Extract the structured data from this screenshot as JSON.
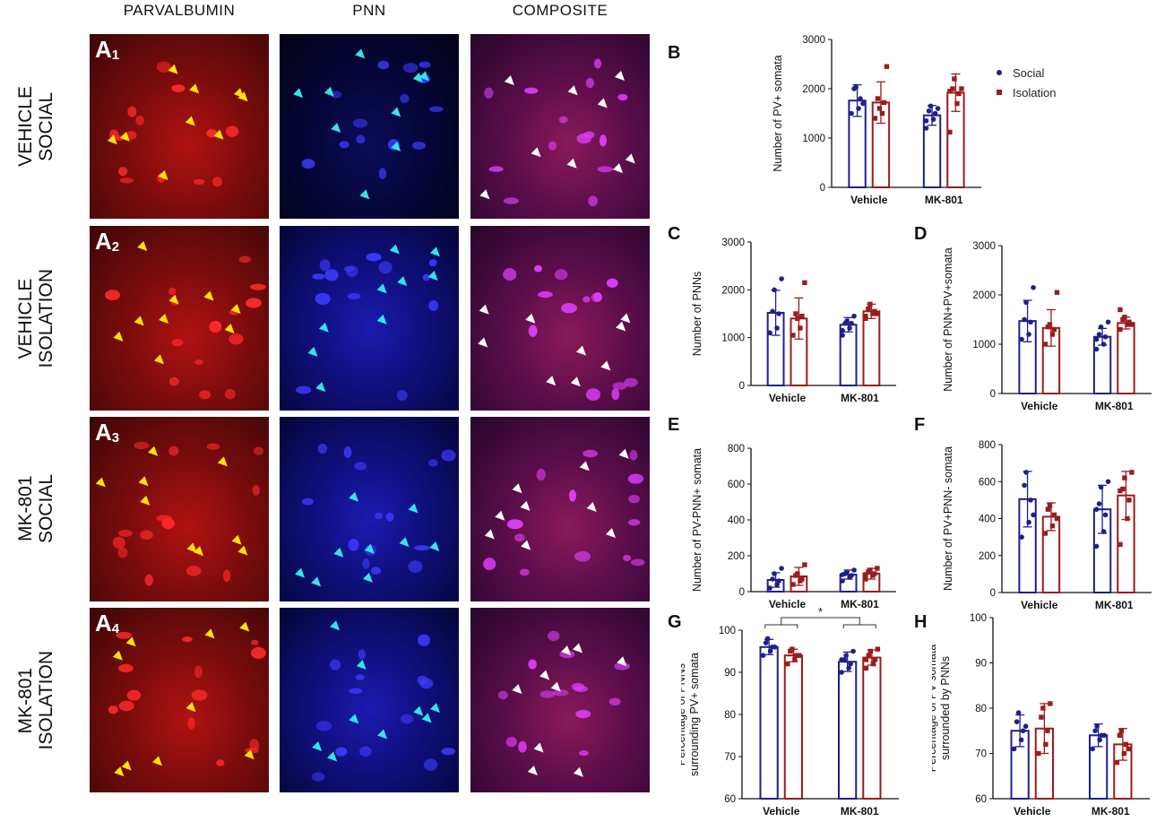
{
  "column_headers": [
    "PARVALBUMIN",
    "PNN",
    "COMPOSITE"
  ],
  "rows": [
    {
      "label": [
        "VEHICLE",
        "SOCIAL"
      ],
      "tag": "A",
      "tag_sub": "1"
    },
    {
      "label": [
        "VEHICLE",
        "ISOLATION"
      ],
      "tag": "A",
      "tag_sub": "2"
    },
    {
      "label": [
        "MK-801",
        "SOCIAL"
      ],
      "tag": "A",
      "tag_sub": "3"
    },
    {
      "label": [
        "MK-801",
        "ISOLATION"
      ],
      "tag": "A",
      "tag_sub": "4"
    }
  ],
  "legend": [
    {
      "name": "Social",
      "color": "#1f1f8c",
      "marker": "circle"
    },
    {
      "name": "Isolation",
      "color": "#9b1c1c",
      "marker": "square"
    }
  ],
  "colors": {
    "social": "#1f1f8c",
    "isolation": "#9b1c1c",
    "parvalbumin_bg": "#5a0a0a",
    "pnn_bg": "#05052e",
    "composite_bg": "#2a0a2e",
    "pv_arrow": "#ffe600",
    "pnn_arrow": "#2ee6e6",
    "composite_arrow": "#ffffff"
  },
  "chart_data": [
    {
      "id": "B",
      "type": "bar",
      "categories": [
        "Vehicle",
        "MK-801"
      ],
      "ylabel": "Number of PV+ somata",
      "ylim": [
        0,
        3000
      ],
      "yticks": [
        0,
        1000,
        2000,
        3000
      ],
      "series": [
        {
          "name": "Social",
          "values": [
            1760,
            1460
          ],
          "err": [
            320,
            200
          ],
          "points": [
            [
              1500,
              1600,
              1800,
              2000,
              2030,
              1700
            ],
            [
              1200,
              1380,
              1500,
              1550,
              1650,
              1600,
              1350
            ]
          ]
        },
        {
          "name": "Isolation",
          "values": [
            1720,
            1920
          ],
          "err": [
            420,
            380
          ],
          "points": [
            [
              1400,
              1500,
              1720,
              1800,
              1600,
              2450
            ],
            [
              1120,
              1700,
              1900,
              2000,
              2200,
              2000,
              1950
            ]
          ]
        }
      ],
      "sig": null
    },
    {
      "id": "C",
      "type": "bar",
      "categories": [
        "Vehicle",
        "MK-801"
      ],
      "ylabel": "Number of PNNs",
      "ylim": [
        0,
        3000
      ],
      "yticks": [
        0,
        1000,
        2000,
        3000
      ],
      "series": [
        {
          "name": "Social",
          "values": [
            1520,
            1270
          ],
          "err": [
            470,
            150
          ],
          "points": [
            [
              1100,
              1200,
              1500,
              1550,
              2000,
              2230
            ],
            [
              1050,
              1200,
              1300,
              1300,
              1350,
              1450,
              1150
            ]
          ]
        },
        {
          "name": "Isolation",
          "values": [
            1400,
            1550
          ],
          "err": [
            430,
            150
          ],
          "points": [
            [
              1050,
              1200,
              1450,
              1500,
              1400,
              2150
            ],
            [
              1400,
              1500,
              1550,
              1600,
              1700,
              1500,
              1450
            ]
          ]
        }
      ],
      "sig": null
    },
    {
      "id": "D",
      "type": "bar",
      "categories": [
        "Vehicle",
        "MK-801"
      ],
      "ylabel": "Number of PNN+PV+somata",
      "ylim": [
        0,
        3000
      ],
      "yticks": [
        0,
        1000,
        2000,
        3000
      ],
      "series": [
        {
          "name": "Social",
          "values": [
            1470,
            1150
          ],
          "err": [
            420,
            170
          ],
          "points": [
            [
              1100,
              1200,
              1450,
              1500,
              1850,
              2150
            ],
            [
              900,
              1000,
              1150,
              1200,
              1350,
              1450,
              1100
            ]
          ]
        },
        {
          "name": "Isolation",
          "values": [
            1330,
            1430
          ],
          "err": [
            370,
            120
          ],
          "points": [
            [
              1000,
              1200,
              1300,
              1350,
              1400,
              2050
            ],
            [
              1300,
              1400,
              1450,
              1500,
              1550,
              1400,
              1700
            ]
          ]
        }
      ],
      "sig": null
    },
    {
      "id": "E",
      "type": "bar",
      "categories": [
        "Vehicle",
        "MK-801"
      ],
      "ylabel": "Number of PV-PNN+ somata",
      "ylim": [
        0,
        800
      ],
      "yticks": [
        0,
        200,
        400,
        600,
        800
      ],
      "series": [
        {
          "name": "Social",
          "values": [
            65,
            95
          ],
          "err": [
            40,
            25
          ],
          "points": [
            [
              20,
              40,
              60,
              70,
              100,
              130
            ],
            [
              60,
              80,
              90,
              100,
              110,
              120,
              95
            ]
          ]
        },
        {
          "name": "Isolation",
          "values": [
            85,
            100
          ],
          "err": [
            50,
            30
          ],
          "points": [
            [
              40,
              60,
              70,
              90,
              100,
              150
            ],
            [
              70,
              90,
              100,
              110,
              120,
              130,
              95
            ]
          ]
        }
      ],
      "sig": null
    },
    {
      "id": "F",
      "type": "bar",
      "categories": [
        "Vehicle",
        "MK-801"
      ],
      "ylabel": "Number of PV+PNN- somata",
      "ylim": [
        0,
        800
      ],
      "yticks": [
        0,
        200,
        400,
        600,
        800
      ],
      "series": [
        {
          "name": "Social",
          "values": [
            505,
            450
          ],
          "err": [
            150,
            130
          ],
          "points": [
            [
              300,
              380,
              500,
              580,
              650,
              420
            ],
            [
              250,
              330,
              420,
              480,
              570,
              600,
              450
            ]
          ]
        },
        {
          "name": "Isolation",
          "values": [
            410,
            525
          ],
          "err": [
            75,
            130
          ],
          "points": [
            [
              320,
              360,
              420,
              450,
              470,
              400
            ],
            [
              260,
              400,
              500,
              560,
              620,
              650,
              550
            ]
          ]
        }
      ],
      "sig": null
    },
    {
      "id": "G",
      "type": "bar",
      "categories": [
        "Vehicle",
        "MK-801"
      ],
      "ylabel": [
        "Percentage of PNNs",
        "surrounding PV+ somata"
      ],
      "ylim": [
        60,
        100
      ],
      "yticks": [
        60,
        70,
        80,
        90,
        100
      ],
      "series": [
        {
          "name": "Social",
          "values": [
            96.0,
            92.5
          ],
          "err": [
            1.8,
            2.3
          ],
          "points": [
            [
              94,
              95,
              96,
              97,
              98,
              96
            ],
            [
              90,
              91,
              92,
              93,
              94,
              95,
              93
            ]
          ]
        },
        {
          "name": "Isolation",
          "values": [
            94.0,
            93.5
          ],
          "err": [
            1.5,
            1.8
          ],
          "points": [
            [
              92,
              93,
              94,
              95,
              95.5,
              94
            ],
            [
              91,
              92,
              93,
              94,
              95,
              95.5,
              93
            ]
          ]
        }
      ],
      "sig": "*"
    },
    {
      "id": "H",
      "type": "bar",
      "categories": [
        "Vehicle",
        "MK-801"
      ],
      "ylabel": [
        "Percentage of PV somata",
        "surrounded by PNNs"
      ],
      "ylim": [
        60,
        100
      ],
      "yticks": [
        60,
        70,
        80,
        90,
        100
      ],
      "series": [
        {
          "name": "Social",
          "values": [
            75,
            74
          ],
          "err": [
            3.5,
            2.5
          ],
          "points": [
            [
              71,
              73,
              75,
              77,
              79,
              76
            ],
            [
              71,
              73,
              74,
              75,
              76,
              74
            ]
          ]
        },
        {
          "name": "Isolation",
          "values": [
            75.5,
            72
          ],
          "err": [
            5.5,
            3.5
          ],
          "points": [
            [
              70,
              72,
              75,
              78,
              80,
              81
            ],
            [
              68,
              70,
              72,
              74,
              75,
              71
            ]
          ]
        }
      ],
      "sig": null
    }
  ]
}
